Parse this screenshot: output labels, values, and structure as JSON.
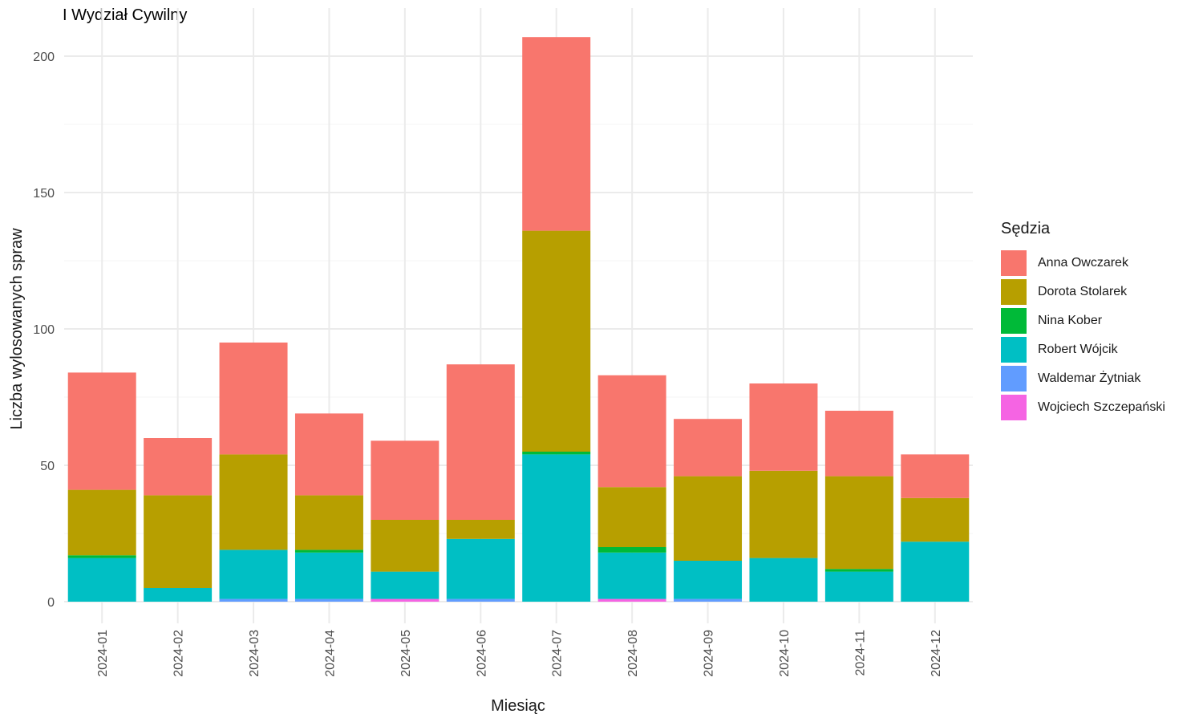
{
  "chart_data": {
    "type": "bar",
    "stacked": true,
    "title": "I Wydział Cywilny",
    "xlabel": "Miesiąc",
    "ylabel": "Liczba wylosowanych spraw",
    "ylim": [
      0,
      217
    ],
    "yticks": [
      0,
      50,
      100,
      150,
      200
    ],
    "grid": true,
    "legend_title": "Sędzia",
    "legend_position": "right",
    "categories": [
      "2024-01",
      "2024-02",
      "2024-03",
      "2024-04",
      "2024-05",
      "2024-06",
      "2024-07",
      "2024-08",
      "2024-09",
      "2024-10",
      "2024-11",
      "2024-12"
    ],
    "series": [
      {
        "name": "Wojciech Szczepański",
        "color": "#F564E3",
        "values": [
          0,
          0,
          0,
          0,
          1,
          0,
          0,
          1,
          0,
          0,
          0,
          0
        ]
      },
      {
        "name": "Waldemar Żytniak",
        "color": "#619CFF",
        "values": [
          0,
          0,
          1,
          1,
          0,
          1,
          0,
          0,
          1,
          0,
          0,
          0
        ]
      },
      {
        "name": "Robert Wójcik",
        "color": "#00BFC4",
        "values": [
          16,
          5,
          18,
          17,
          10,
          22,
          54,
          17,
          14,
          16,
          11,
          22
        ]
      },
      {
        "name": "Nina Kober",
        "color": "#00BA38",
        "values": [
          1,
          0,
          0,
          1,
          0,
          0,
          1,
          2,
          0,
          0,
          1,
          0
        ]
      },
      {
        "name": "Dorota Stolarek",
        "color": "#B79F00",
        "values": [
          24,
          34,
          35,
          20,
          19,
          7,
          81,
          22,
          31,
          32,
          34,
          16
        ]
      },
      {
        "name": "Anna Owczarek",
        "color": "#F8766D",
        "values": [
          43,
          21,
          41,
          30,
          29,
          57,
          71,
          41,
          21,
          32,
          24,
          16
        ]
      }
    ],
    "legend_order": [
      "Anna Owczarek",
      "Dorota Stolarek",
      "Nina Kober",
      "Robert Wójcik",
      "Waldemar Żytniak",
      "Wojciech Szczepański"
    ]
  }
}
